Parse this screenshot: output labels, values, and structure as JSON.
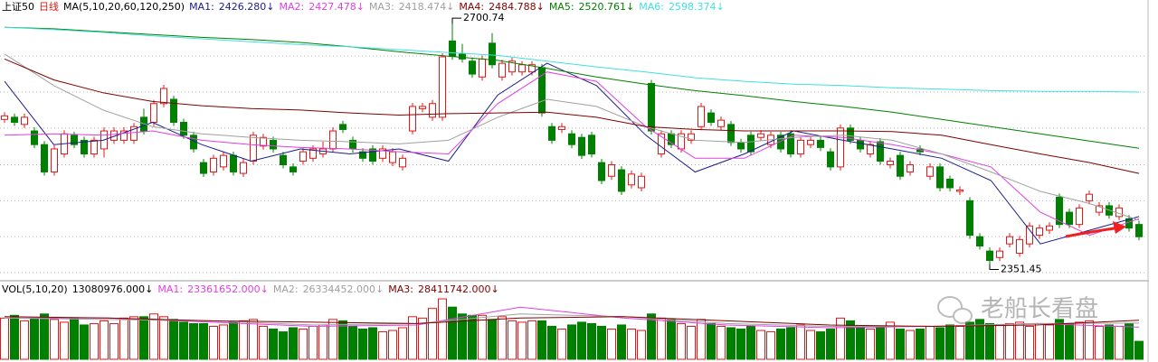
{
  "chart_data": [
    {
      "type": "candlestick",
      "header": [
        "上证50",
        "日线",
        "MA(5,10,20,60,120,250)"
      ],
      "high_label": "2700.74",
      "low_label": "2351.45",
      "up_color": "#e01818",
      "down_color": "#008000",
      "ylim": [
        2337,
        2726
      ],
      "gridlines": [
        2648,
        2598,
        2548,
        2497,
        2447,
        2397,
        2347
      ],
      "open": [
        2560,
        2563,
        2553,
        2544,
        2525,
        2487,
        2512,
        2538,
        2531,
        2512,
        2519,
        2531,
        2531,
        2531,
        2563,
        2556,
        2582,
        2588,
        2556,
        2538,
        2500,
        2487,
        2494,
        2510,
        2485,
        2502,
        2523,
        2531,
        2510,
        2494,
        2502,
        2506,
        2512,
        2519,
        2553,
        2531,
        2515,
        2519,
        2506,
        2500,
        2494,
        2544,
        2575,
        2563,
        2563,
        2669,
        2651,
        2641,
        2619,
        2666,
        2619,
        2626,
        2626,
        2626,
        2632,
        2550,
        2546,
        2540,
        2535,
        2538,
        2500,
        2481,
        2490,
        2469,
        2465,
        2610,
        2512,
        2540,
        2519,
        2531,
        2550,
        2569,
        2550,
        2553,
        2528,
        2538,
        2535,
        2525,
        2538,
        2540,
        2512,
        2525,
        2531,
        2515,
        2494,
        2548,
        2531,
        2512,
        2529,
        2497,
        2510,
        2487,
        2519,
        2481,
        2494,
        2477,
        2460,
        2447,
        2397,
        2377,
        2368,
        2387,
        2374,
        2387,
        2399,
        2406,
        2452,
        2431,
        2414,
        2447,
        2431,
        2440,
        2425,
        2422,
        2414
      ],
      "high": [
        2570,
        2568,
        2568,
        2549,
        2530,
        2524,
        2545,
        2543,
        2536,
        2536,
        2549,
        2549,
        2549,
        2555,
        2575,
        2587,
        2608,
        2593,
        2561,
        2543,
        2505,
        2511,
        2515,
        2515,
        2505,
        2543,
        2540,
        2536,
        2515,
        2499,
        2520,
        2524,
        2529,
        2549,
        2558,
        2536,
        2520,
        2524,
        2524,
        2520,
        2511,
        2583,
        2583,
        2587,
        2652,
        2700.74,
        2665,
        2646,
        2649,
        2680,
        2643,
        2646,
        2641,
        2641,
        2637,
        2555,
        2555,
        2545,
        2540,
        2543,
        2505,
        2502,
        2495,
        2489,
        2486,
        2615,
        2545,
        2545,
        2545,
        2545,
        2583,
        2574,
        2564,
        2558,
        2533,
        2543,
        2545,
        2543,
        2543,
        2545,
        2536,
        2536,
        2536,
        2520,
        2553,
        2553,
        2536,
        2530,
        2534,
        2507,
        2515,
        2502,
        2524,
        2499,
        2499,
        2482,
        2467,
        2452,
        2402,
        2382,
        2382,
        2402,
        2398,
        2417,
        2414,
        2417,
        2457,
        2436,
        2442,
        2461,
        2445,
        2445,
        2442,
        2427,
        2419
      ],
      "low": [
        2555,
        2551,
        2548,
        2520,
        2482,
        2482,
        2507,
        2520,
        2507,
        2507,
        2507,
        2526,
        2526,
        2526,
        2539,
        2551,
        2577,
        2551,
        2533,
        2514,
        2480,
        2482,
        2489,
        2482,
        2480,
        2497,
        2518,
        2514,
        2492,
        2482,
        2497,
        2501,
        2507,
        2514,
        2541,
        2514,
        2501,
        2497,
        2501,
        2495,
        2489,
        2539,
        2570,
        2558,
        2558,
        2643,
        2639,
        2618,
        2614,
        2631,
        2614,
        2621,
        2621,
        2621,
        2564,
        2526,
        2541,
        2520,
        2505,
        2507,
        2470,
        2476,
        2455,
        2464,
        2460,
        2539,
        2507,
        2520,
        2514,
        2526,
        2545,
        2551,
        2545,
        2523,
        2514,
        2510,
        2530,
        2520,
        2514,
        2507,
        2507,
        2520,
        2516,
        2489,
        2489,
        2526,
        2514,
        2507,
        2497,
        2492,
        2476,
        2482,
        2510,
        2476,
        2460,
        2460,
        2455,
        2394,
        2379,
        2351.45,
        2363,
        2382,
        2369,
        2382,
        2394,
        2401,
        2409,
        2409,
        2409,
        2442,
        2426,
        2422,
        2420,
        2404,
        2392
      ],
      "close": [
        2565,
        2556,
        2563,
        2525,
        2487,
        2519,
        2540,
        2525,
        2512,
        2531,
        2544,
        2544,
        2544,
        2550,
        2544,
        2582,
        2603,
        2556,
        2538,
        2519,
        2485,
        2506,
        2510,
        2487,
        2500,
        2538,
        2535,
        2519,
        2497,
        2487,
        2515,
        2519,
        2519,
        2544,
        2546,
        2519,
        2506,
        2502,
        2519,
        2515,
        2506,
        2578,
        2578,
        2582,
        2647,
        2648,
        2644,
        2623,
        2644,
        2636,
        2638,
        2641,
        2636,
        2636,
        2569,
        2531,
        2550,
        2525,
        2510,
        2512,
        2475,
        2497,
        2460,
        2484,
        2481,
        2544,
        2540,
        2525,
        2540,
        2540,
        2578,
        2556,
        2559,
        2528,
        2519,
        2515,
        2540,
        2538,
        2519,
        2512,
        2531,
        2531,
        2521,
        2494,
        2548,
        2531,
        2519,
        2525,
        2502,
        2502,
        2481,
        2497,
        2515,
        2494,
        2465,
        2465,
        2462,
        2399,
        2384,
        2364,
        2377,
        2397,
        2393,
        2412,
        2409,
        2412,
        2414,
        2414,
        2437,
        2456,
        2440,
        2427,
        2437,
        2409,
        2397
      ],
      "series": [
        {
          "name": "MA1:",
          "reading": "2426.280↓",
          "color": "#1c1c8c",
          "values": [
            2613,
            2525,
            2531,
            2556,
            2525,
            2502,
            2519,
            2512,
            2519,
            2502,
            2594,
            2638,
            2607,
            2538,
            2487,
            2512,
            2544,
            2531,
            2519,
            2506,
            2475,
            2387,
            2406,
            2425
          ]
        },
        {
          "name": "MA2:",
          "reading": "2427.478↓",
          "color": "#e040e0",
          "values": [
            2538,
            2540,
            2538,
            2544,
            2531,
            2525,
            2521,
            2519,
            2515,
            2512,
            2582,
            2626,
            2613,
            2550,
            2506,
            2506,
            2538,
            2535,
            2525,
            2512,
            2494,
            2431,
            2399,
            2422
          ]
        },
        {
          "name": "MA3:",
          "reading": "2418.474↓",
          "color": "#a0a0a0",
          "values": [
            2651,
            2607,
            2573,
            2550,
            2540,
            2535,
            2531,
            2529,
            2526,
            2531,
            2563,
            2588,
            2578,
            2550,
            2531,
            2528,
            2535,
            2538,
            2531,
            2512,
            2487,
            2460,
            2443,
            2420
          ]
        },
        {
          "name": "MA4:",
          "reading": "2484.788↓",
          "color": "#800000",
          "values": [
            2644,
            2615,
            2597,
            2585,
            2579,
            2575,
            2573,
            2569,
            2566,
            2568,
            2569,
            2570,
            2563,
            2550,
            2546,
            2544,
            2544,
            2544,
            2543,
            2538,
            2525,
            2512,
            2500,
            2485
          ]
        },
        {
          "name": "MA5:",
          "reading": "2520.761↓",
          "color": "#008000",
          "values": [
            2688,
            2686,
            2682,
            2678,
            2674,
            2671,
            2667,
            2661,
            2654,
            2648,
            2642,
            2631,
            2619,
            2609,
            2600,
            2593,
            2585,
            2578,
            2570,
            2560,
            2550,
            2540,
            2530,
            2520
          ]
        },
        {
          "name": "MA6:",
          "reading": "2598.374↓",
          "color": "#40e0e0",
          "values": [
            2688,
            2685,
            2681,
            2676,
            2672,
            2668,
            2664,
            2661,
            2657,
            2653,
            2649,
            2641,
            2633,
            2626,
            2618,
            2613,
            2609,
            2607,
            2604,
            2602,
            2600,
            2599,
            2599,
            2598
          ]
        }
      ]
    },
    {
      "type": "bar",
      "title": "VOL(5,10,20)",
      "reading": "13080976.000↓",
      "ylim": [
        0,
        46000000
      ],
      "values": [
        30000000,
        32000000,
        28000000,
        30000000,
        33000000,
        29000000,
        27000000,
        30000000,
        25000000,
        26000000,
        28000000,
        26000000,
        30000000,
        31000000,
        31000000,
        33000000,
        31000000,
        29000000,
        27000000,
        26000000,
        26000000,
        24000000,
        25000000,
        27000000,
        28000000,
        29000000,
        24000000,
        22000000,
        20000000,
        23000000,
        22000000,
        24000000,
        25000000,
        29000000,
        28000000,
        24000000,
        22000000,
        23000000,
        20000000,
        21000000,
        23000000,
        31000000,
        30000000,
        37000000,
        44000000,
        38000000,
        33000000,
        32000000,
        32000000,
        29000000,
        31000000,
        28000000,
        27000000,
        28000000,
        28000000,
        24000000,
        22000000,
        25000000,
        27000000,
        26000000,
        24000000,
        22000000,
        25000000,
        22000000,
        21000000,
        33000000,
        30000000,
        29000000,
        26000000,
        24000000,
        29000000,
        26000000,
        24000000,
        23000000,
        22000000,
        24000000,
        21000000,
        20000000,
        22000000,
        23000000,
        25000000,
        21000000,
        20000000,
        22000000,
        30000000,
        28000000,
        24000000,
        22000000,
        23000000,
        27000000,
        22000000,
        21000000,
        22000000,
        24000000,
        23000000,
        25000000,
        24000000,
        27000000,
        29000000,
        26000000,
        25000000,
        26000000,
        27000000,
        24000000,
        26000000,
        25000000,
        29000000,
        26000000,
        27000000,
        28000000,
        24000000,
        25000000,
        24000000,
        26000000,
        13080976
      ],
      "series": [
        {
          "name": "MA1:",
          "reading": "23361652.000↓",
          "color": "#e040e0",
          "values": [
            30000000,
            30000000,
            27000000,
            24000000,
            25000000,
            38000000,
            30000000,
            25000000,
            23000000,
            24000000,
            26000000,
            23361652
          ]
        },
        {
          "name": "MA2:",
          "reading": "26334452.000↓",
          "color": "#a0a0a0",
          "values": [
            30000000,
            29000000,
            28000000,
            25000000,
            26000000,
            33000000,
            31000000,
            26000000,
            24000000,
            24000000,
            26000000,
            26334452
          ]
        },
        {
          "name": "MA3:",
          "reading": "28411742.000↓",
          "color": "#800000",
          "values": [
            31000000,
            30000000,
            28000000,
            27000000,
            26000000,
            30000000,
            31000000,
            28000000,
            25000000,
            24000000,
            25000000,
            28411742
          ]
        }
      ]
    }
  ],
  "watermark": "老船长看盘"
}
